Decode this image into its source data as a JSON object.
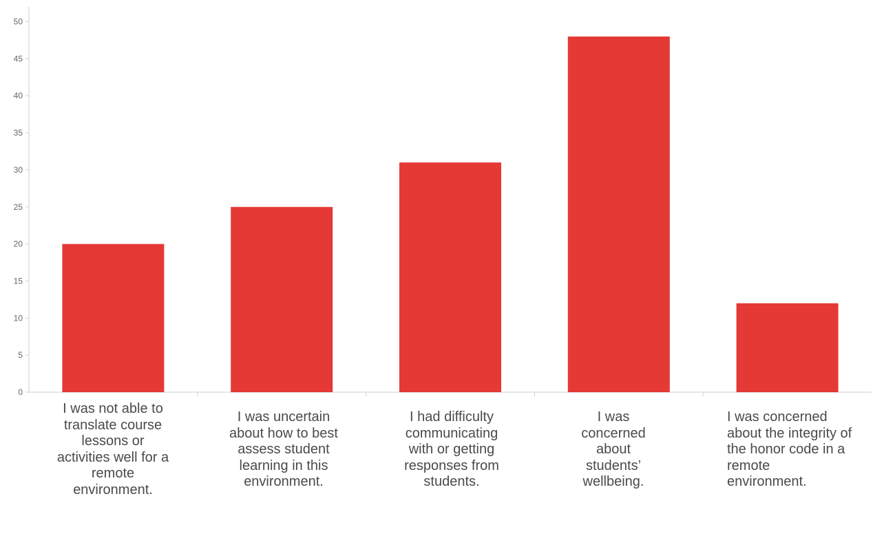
{
  "colors": {
    "bar": "#e53935",
    "axis": "#cfcfcf",
    "tick_text": "#666666",
    "label_text": "#4a4a4a"
  },
  "chart_data": {
    "type": "bar",
    "title": "",
    "xlabel": "",
    "ylabel": "",
    "ylim": [
      0,
      52
    ],
    "yticks": [
      0,
      5,
      10,
      15,
      20,
      25,
      30,
      35,
      40,
      45,
      50
    ],
    "grid": false,
    "legend": "none",
    "categories": [
      "I was not able to translate course lessons or activities well for a remote environment.",
      "I was uncertain about how to best assess student learning in this environment.",
      "I had difficulty communicating with or getting responses from students.",
      "I was concerned about students’ wellbeing.",
      "I was concerned about the integrity of the honor code in a remote environment."
    ],
    "values": [
      20,
      25,
      31,
      48,
      12
    ]
  }
}
